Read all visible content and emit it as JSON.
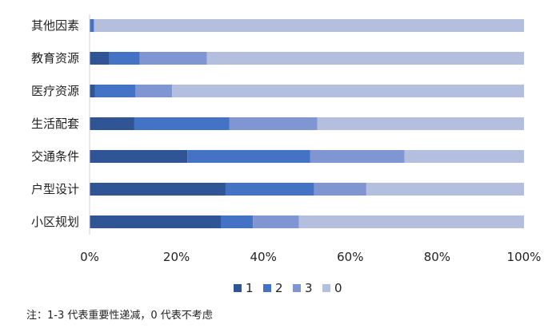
{
  "chart_data": {
    "type": "bar",
    "orientation": "horizontal",
    "stacked": true,
    "percent": true,
    "categories": [
      "其他因素",
      "教育资源",
      "医疗资源",
      "生活配套",
      "交通条件",
      "户型设计",
      "小区规划"
    ],
    "series": [
      {
        "name": "1",
        "color": "#2f5597",
        "values": [
          0,
          4.5,
          1.2,
          10.3,
          22.5,
          31.3,
          30.2
        ]
      },
      {
        "name": "2",
        "color": "#4472c4",
        "values": [
          1.0,
          7.0,
          9.3,
          21.9,
          28.3,
          20.4,
          7.4
        ]
      },
      {
        "name": "3",
        "color": "#7f96d3",
        "values": [
          0,
          15.5,
          8.5,
          20.2,
          21.7,
          12.0,
          10.6
        ]
      },
      {
        "name": "0",
        "color": "#b4bfe0",
        "values": [
          99.0,
          73.0,
          81.0,
          47.6,
          27.5,
          36.3,
          51.8
        ]
      }
    ],
    "xlim": [
      0,
      100
    ],
    "xticks": [
      "0%",
      "20%",
      "40%",
      "60%",
      "80%",
      "100%"
    ],
    "grid": false,
    "legend": "bottom-center"
  },
  "footnote": "注：1-3 代表重要性递减，0 代表不考虑"
}
